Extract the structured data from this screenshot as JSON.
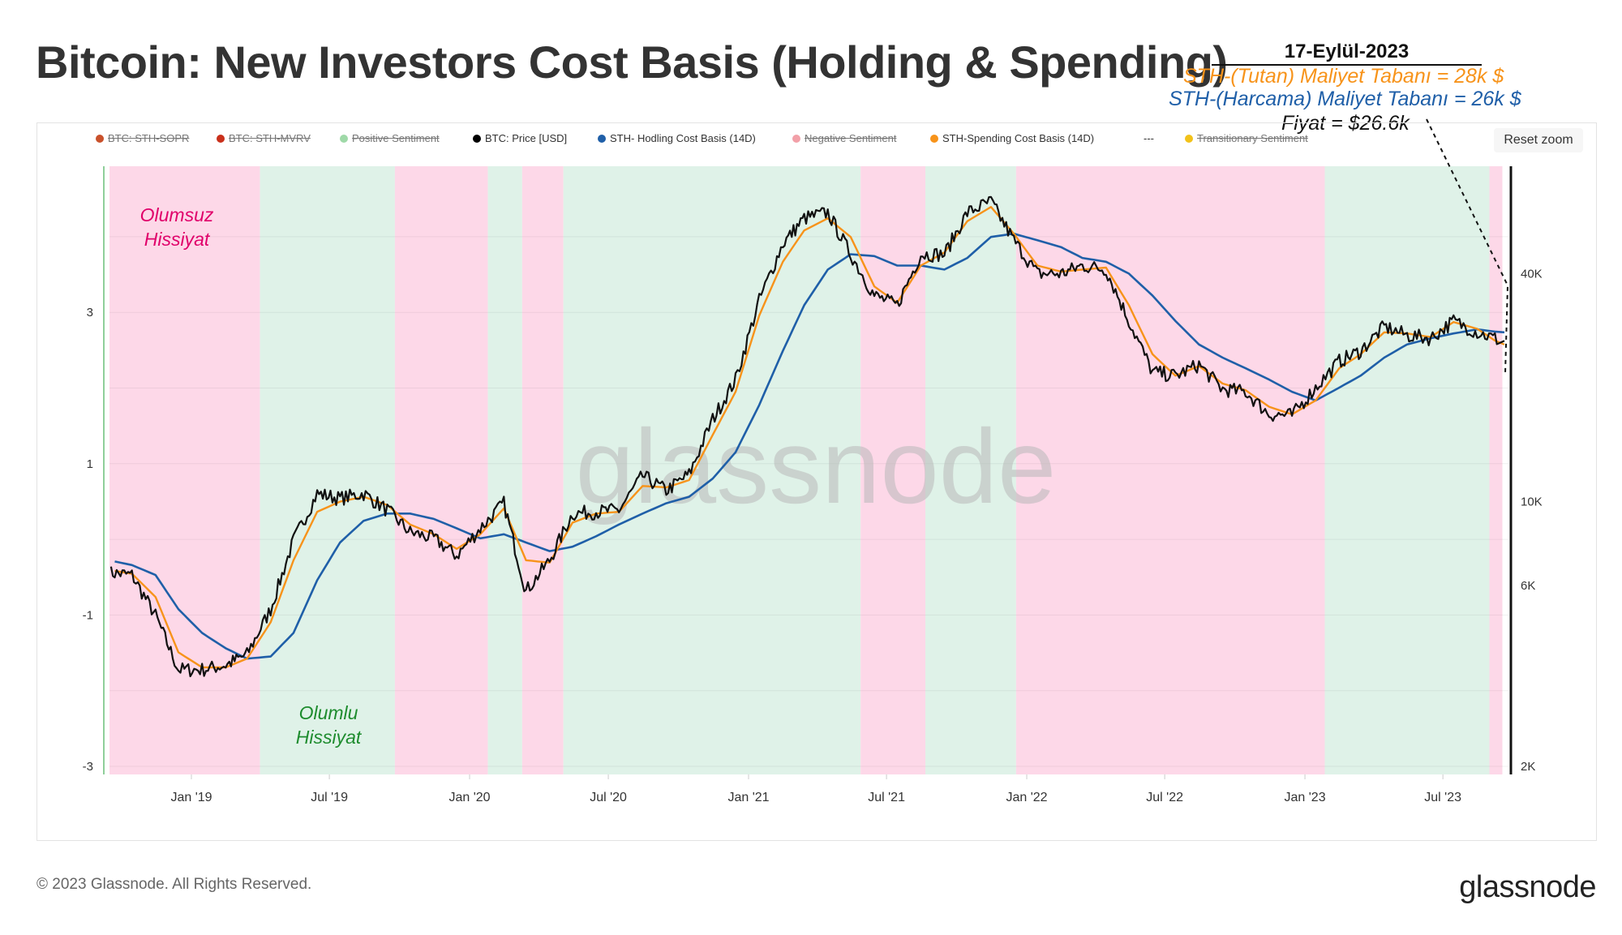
{
  "title": "Bitcoin: New Investors Cost Basis (Holding & Spending)",
  "legend": [
    {
      "label": "BTC: STH-SOPR",
      "color": "#c9512b",
      "hidden": true
    },
    {
      "label": "BTC: STH-MVRV",
      "color": "#c9301b",
      "hidden": true
    },
    {
      "label": "Positive Sentiment",
      "color": "#9fd9a8",
      "hidden": true
    },
    {
      "label": "BTC: Price [USD]",
      "color": "#000000",
      "hidden": false
    },
    {
      "label": "STH- Hodling Cost Basis (14D)",
      "color": "#1f5fa8",
      "hidden": false
    },
    {
      "label": "Negative Sentiment",
      "color": "#f2a0a8",
      "hidden": true
    },
    {
      "label": "STH-Spending Cost Basis (14D)",
      "color": "#f7931a",
      "hidden": false
    },
    {
      "label": "---",
      "color": "",
      "hidden": false
    },
    {
      "label": "Transitionary Sentiment",
      "color": "#f2c21a",
      "hidden": true
    }
  ],
  "reset_zoom": "Reset zoom",
  "annotations": {
    "date": "17-Eylül-2023",
    "holding": "STH-(Tutan) Maliyet Tabanı = 28k $",
    "spending": "STH-(Harcama) Maliyet Tabanı = 26k $",
    "price": "Fiyat = $26.6k",
    "negative": "Olumsuz Hissiyat",
    "positive": "Olumlu Hissiyat"
  },
  "watermark": "glassnode",
  "footer": "© 2023 Glassnode. All Rights Reserved.",
  "logo": "glassnode",
  "colors": {
    "price": "#111111",
    "holding": "#1f5fa8",
    "spending": "#f7931a",
    "positive_band": "#dff2e8",
    "negative_band": "#fdd8e8",
    "negative_text": "#e0006a",
    "positive_text": "#1e8c2e"
  },
  "chart_data": {
    "type": "line",
    "title": "Bitcoin: New Investors Cost Basis (Holding & Spending)",
    "x_start": "2018-09-15",
    "x_end": "2023-09-17",
    "x_ticks": [
      "Jan '19",
      "Jul '19",
      "Jan '20",
      "Jul '20",
      "Jan '21",
      "Jul '21",
      "Jan '22",
      "Jul '22",
      "Jan '23",
      "Jul '23"
    ],
    "x_tick_dates": [
      "2019-01-01",
      "2019-07-01",
      "2020-01-01",
      "2020-07-01",
      "2021-01-01",
      "2021-07-01",
      "2022-01-01",
      "2022-07-01",
      "2023-01-01",
      "2023-07-01"
    ],
    "y_left": {
      "ticks": [
        3,
        1,
        -1,
        -3
      ],
      "range": [
        -3,
        4.93
      ]
    },
    "y_right": {
      "scale": "log",
      "ticks": [
        "40K",
        "10K",
        "6K",
        "2K"
      ],
      "tick_values": [
        40000,
        10000,
        6000,
        2000
      ]
    },
    "bands": [
      {
        "start": "2018-09-15",
        "end": "2019-04-01",
        "sentiment": "negative"
      },
      {
        "start": "2019-04-01",
        "end": "2019-09-25",
        "sentiment": "positive"
      },
      {
        "start": "2019-09-25",
        "end": "2020-01-25",
        "sentiment": "negative"
      },
      {
        "start": "2020-01-25",
        "end": "2020-03-10",
        "sentiment": "positive"
      },
      {
        "start": "2020-03-10",
        "end": "2020-05-03",
        "sentiment": "negative"
      },
      {
        "start": "2020-05-03",
        "end": "2021-05-28",
        "sentiment": "positive"
      },
      {
        "start": "2021-05-28",
        "end": "2021-08-21",
        "sentiment": "negative"
      },
      {
        "start": "2021-08-21",
        "end": "2021-12-18",
        "sentiment": "positive"
      },
      {
        "start": "2021-12-18",
        "end": "2023-01-27",
        "sentiment": "negative"
      },
      {
        "start": "2023-01-27",
        "end": "2023-08-31",
        "sentiment": "positive"
      },
      {
        "start": "2023-08-31",
        "end": "2023-09-17",
        "sentiment": "negative"
      }
    ],
    "series_start_month": "2018-09",
    "series": [
      {
        "name": "BTC: Price [USD]",
        "values": [
          6500,
          6400,
          5000,
          3600,
          3600,
          3700,
          3950,
          5200,
          7900,
          10500,
          10200,
          10500,
          9500,
          8300,
          8000,
          7200,
          8500,
          9900,
          5800,
          7000,
          9300,
          9400,
          9500,
          11700,
          10700,
          11800,
          16500,
          21000,
          34000,
          48000,
          56000,
          58000,
          45000,
          35000,
          33000,
          45000,
          45000,
          58000,
          62000,
          49000,
          40000,
          40000,
          42000,
          41000,
          30000,
          22000,
          21500,
          23000,
          19800,
          19500,
          17000,
          16900,
          20000,
          23500,
          25000,
          29000,
          27500,
          27000,
          30000,
          28000,
          26600
        ]
      },
      {
        "name": "STH- Hodling Cost Basis (14D)",
        "values": [
          7000,
          6800,
          6400,
          5200,
          4500,
          4100,
          3850,
          3900,
          4500,
          6200,
          7800,
          8900,
          9300,
          9300,
          9000,
          8500,
          8000,
          8200,
          7800,
          7400,
          7600,
          8100,
          8700,
          9300,
          9900,
          10300,
          11500,
          13500,
          18000,
          25000,
          33000,
          41000,
          45000,
          44500,
          42000,
          42000,
          41000,
          44000,
          50000,
          51000,
          49000,
          47000,
          44000,
          43000,
          40000,
          35000,
          30000,
          26000,
          24000,
          22500,
          21000,
          19500,
          18500,
          20000,
          21500,
          24000,
          26000,
          27000,
          27800,
          28500,
          28000
        ]
      },
      {
        "name": "STH-Spending Cost Basis (14D)",
        "values": [
          6600,
          6450,
          5600,
          4000,
          3650,
          3650,
          3850,
          4800,
          7000,
          9400,
          10000,
          10300,
          9800,
          8700,
          8200,
          7500,
          8200,
          9600,
          7000,
          6900,
          8800,
          9300,
          9400,
          11000,
          10900,
          11400,
          15000,
          19500,
          31000,
          43000,
          52000,
          56000,
          50000,
          37000,
          33500,
          42000,
          45500,
          55000,
          60000,
          51000,
          42000,
          40500,
          41000,
          41500,
          33000,
          24500,
          21500,
          22800,
          20500,
          19700,
          17800,
          17000,
          18500,
          22500,
          24500,
          28000,
          27800,
          27200,
          29800,
          28600,
          26000
        ]
      }
    ]
  }
}
